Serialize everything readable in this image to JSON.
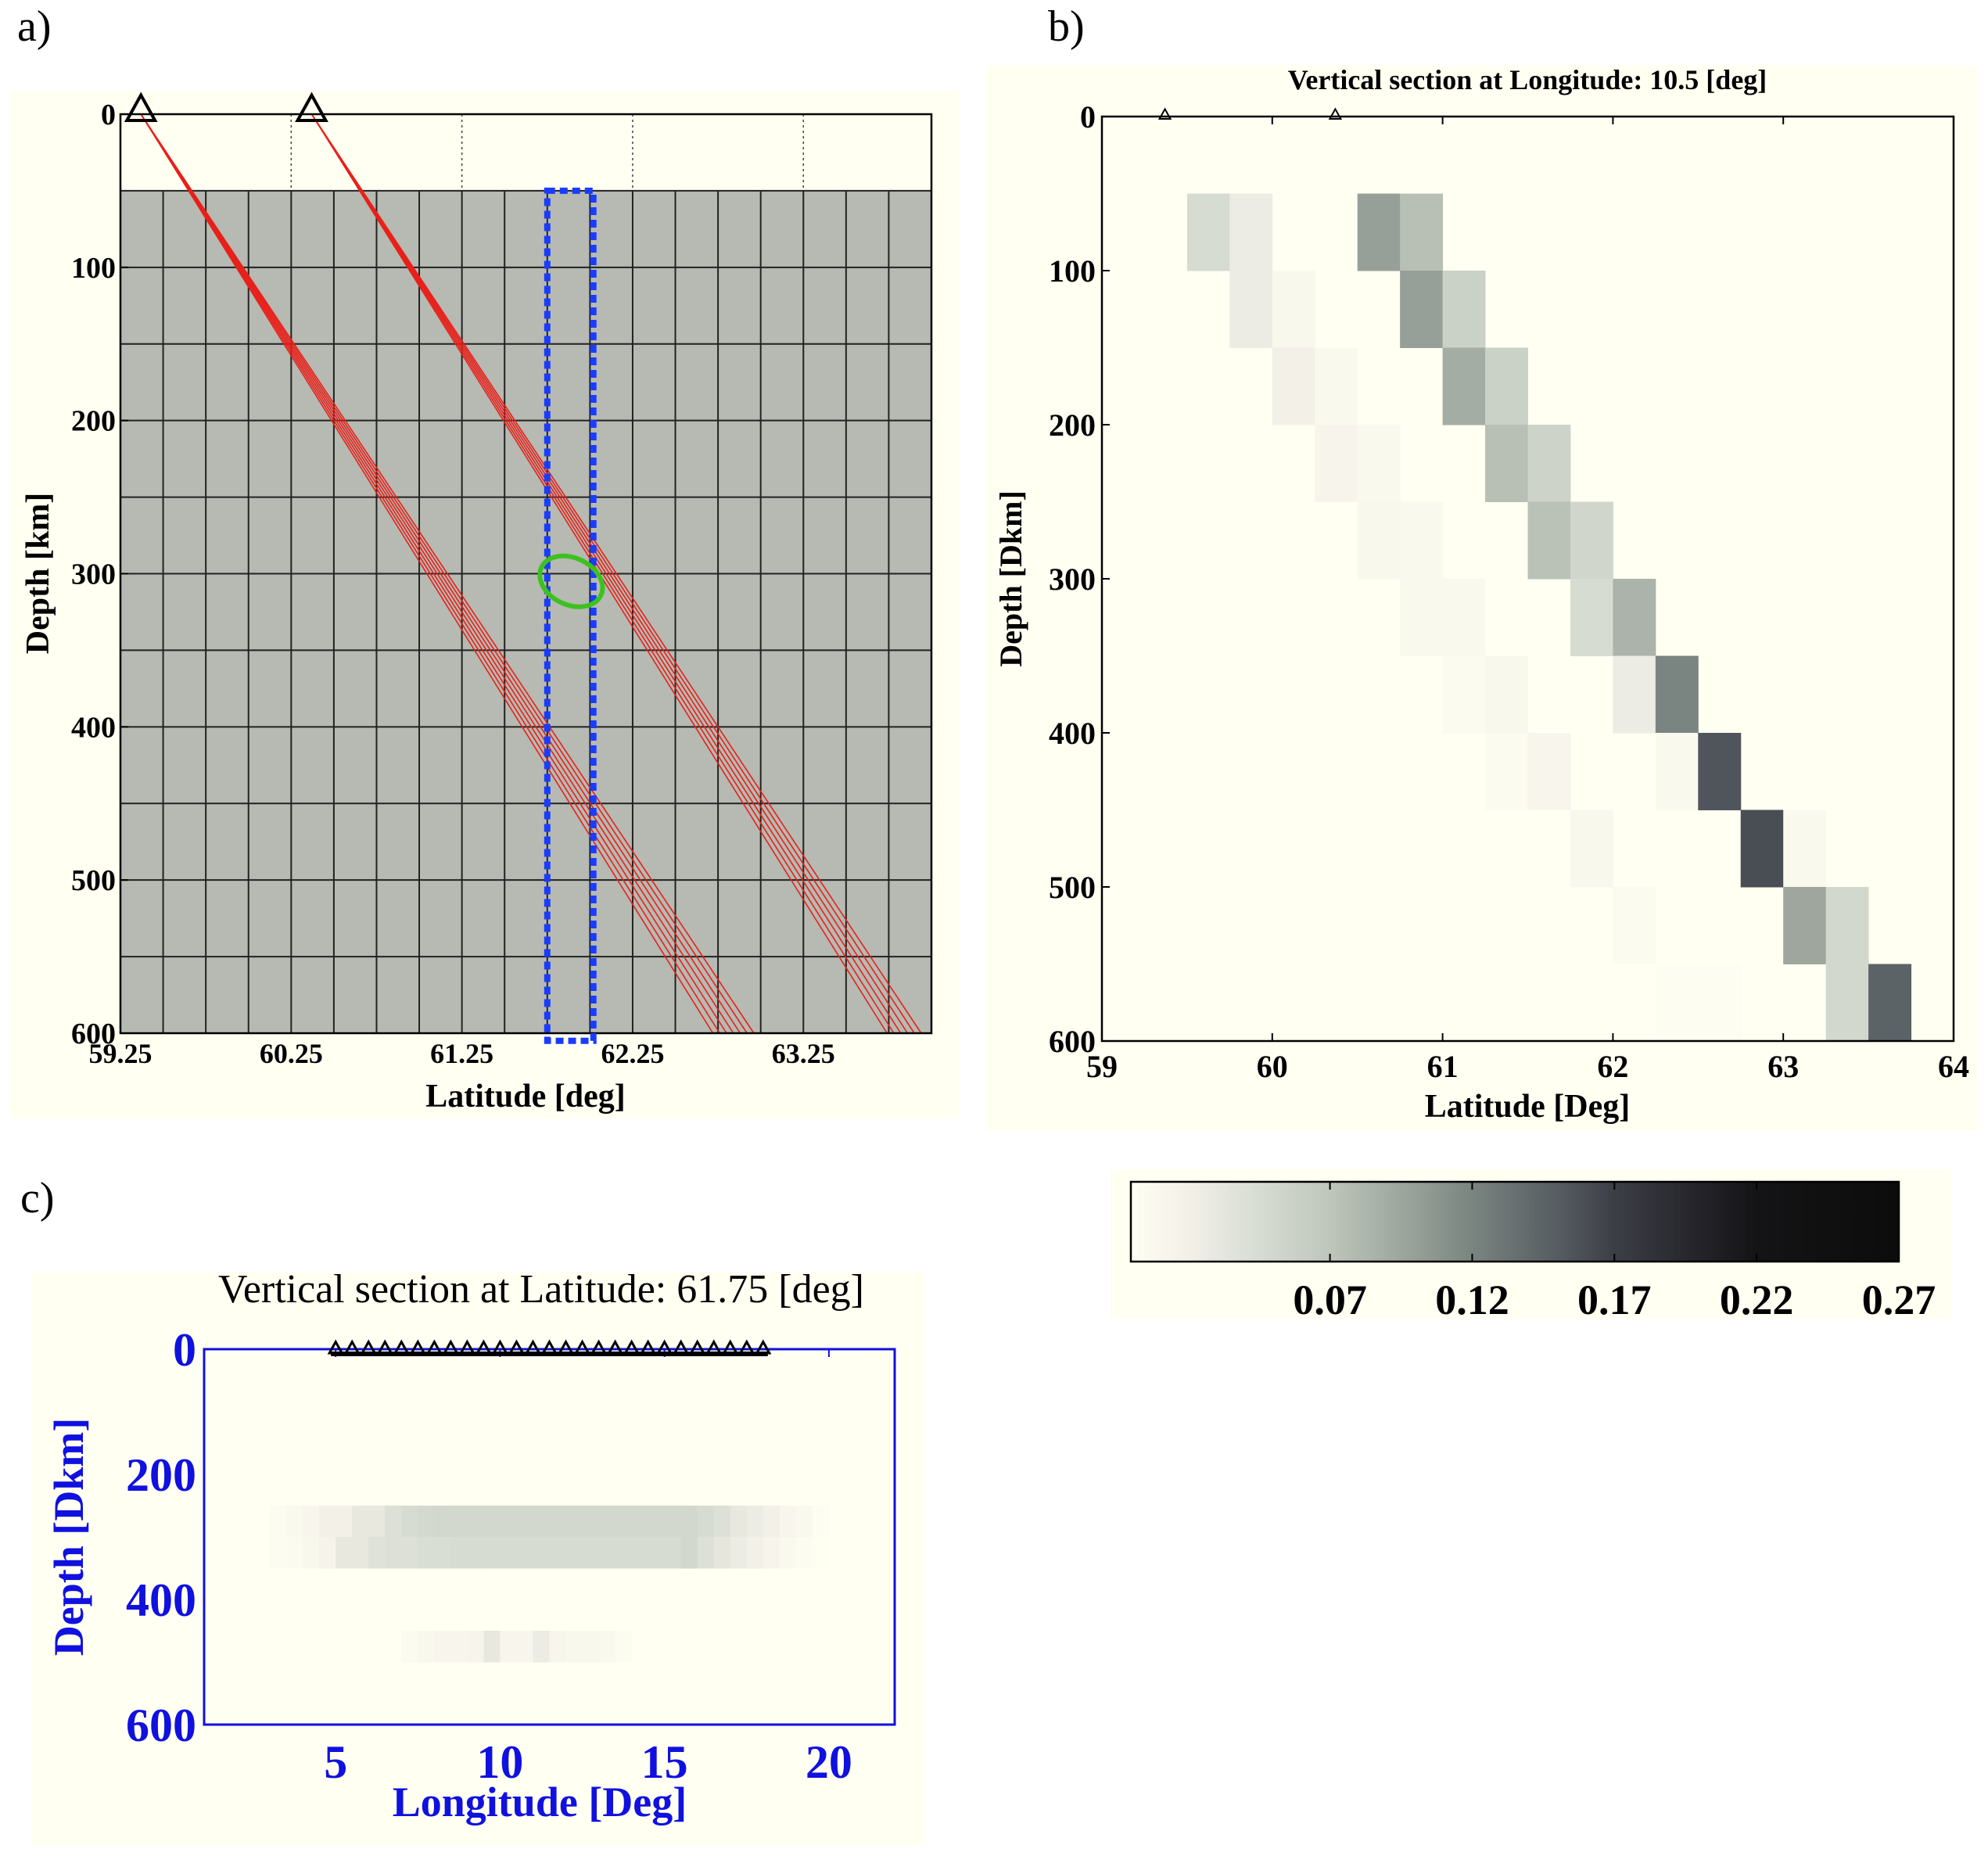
{
  "panels": {
    "a": "a)",
    "b": "b)",
    "c": "c)"
  },
  "chart_data": [
    {
      "id": "a",
      "type": "line",
      "title": "",
      "xlabel": "Latitude [deg]",
      "ylabel": "Depth [km]",
      "xlim": [
        59.25,
        64
      ],
      "ylim": [
        0,
        600
      ],
      "xticks": [
        "59.25",
        "60.25",
        "61.25",
        "62.25",
        "63.25"
      ],
      "yticks": [
        "0",
        "100",
        "200",
        "300",
        "400",
        "500",
        "600"
      ],
      "grid": {
        "lat_step": 0.25,
        "depth_step": 50,
        "shaded_from_depth": 50,
        "fill": "#b6bab2"
      },
      "stations_lat": [
        59.37,
        60.37
      ],
      "ray_color": "#e8201a",
      "rays": [
        {
          "start_lat": 59.37,
          "end_depth": 600,
          "end_lats": [
            62.72,
            62.76,
            62.8,
            62.84,
            62.88,
            62.92,
            62.96
          ]
        },
        {
          "start_lat": 60.37,
          "end_depth": 600,
          "end_lats": [
            63.74,
            63.78,
            63.82,
            63.86,
            63.9,
            63.94
          ]
        }
      ],
      "selection_box": {
        "lat": [
          61.75,
          62.02
        ],
        "depth": [
          50,
          605
        ],
        "color": "#1a3cff"
      },
      "highlight_ellipse": {
        "center_lat": 61.89,
        "center_depth": 305,
        "color": "#3cc21e"
      }
    },
    {
      "id": "b",
      "type": "heatmap",
      "title": "Vertical section at Longitude: 10.5 [deg]",
      "xlabel": "Latitude [Deg]",
      "ylabel": "Depth [Dkm]",
      "xlim": [
        59,
        64
      ],
      "ylim": [
        0,
        600
      ],
      "xticks": [
        "59",
        "60",
        "61",
        "62",
        "63",
        "64"
      ],
      "yticks": [
        "0",
        "100",
        "200",
        "300",
        "400",
        "500",
        "600"
      ],
      "cell_size": {
        "lat": 0.25,
        "depth": 50
      },
      "stations_lat": [
        59.37,
        60.37
      ],
      "cells": [
        [
          59.5,
          50,
          0.045
        ],
        [
          59.75,
          50,
          0.025
        ],
        [
          60.5,
          50,
          0.1
        ],
        [
          60.75,
          50,
          0.075
        ],
        [
          59.75,
          100,
          0.025
        ],
        [
          60.0,
          100,
          0.01
        ],
        [
          60.75,
          100,
          0.1
        ],
        [
          61.0,
          100,
          0.058
        ],
        [
          60.0,
          150,
          0.02
        ],
        [
          60.25,
          150,
          0.008
        ],
        [
          61.0,
          150,
          0.09
        ],
        [
          61.25,
          150,
          0.058
        ],
        [
          60.25,
          200,
          0.014
        ],
        [
          60.5,
          200,
          0.008
        ],
        [
          61.25,
          200,
          0.075
        ],
        [
          61.5,
          200,
          0.055
        ],
        [
          60.5,
          250,
          0.01
        ],
        [
          60.75,
          250,
          0.008
        ],
        [
          61.5,
          250,
          0.073
        ],
        [
          61.75,
          250,
          0.052
        ],
        [
          60.75,
          300,
          0.008
        ],
        [
          61.0,
          300,
          0.008
        ],
        [
          61.75,
          300,
          0.045
        ],
        [
          62.0,
          300,
          0.085
        ],
        [
          61.0,
          350,
          0.006
        ],
        [
          61.25,
          350,
          0.01
        ],
        [
          62.0,
          350,
          0.025
        ],
        [
          62.25,
          350,
          0.12
        ],
        [
          61.25,
          400,
          0.006
        ],
        [
          61.5,
          400,
          0.012
        ],
        [
          62.25,
          400,
          0.008
        ],
        [
          62.5,
          400,
          0.155
        ],
        [
          61.75,
          450,
          0.01
        ],
        [
          62.75,
          450,
          0.16
        ],
        [
          63.0,
          450,
          0.008
        ],
        [
          62.0,
          500,
          0.006
        ],
        [
          63.0,
          500,
          0.095
        ],
        [
          63.25,
          500,
          0.05
        ],
        [
          62.25,
          550,
          0.003
        ],
        [
          62.5,
          550,
          0.003
        ],
        [
          63.25,
          550,
          0.05
        ],
        [
          63.5,
          550,
          0.145
        ]
      ]
    },
    {
      "id": "colorbar",
      "type": "colorbar",
      "range": [
        0,
        0.27
      ],
      "ticks": [
        "0.07",
        "0.12",
        "0.17",
        "0.22",
        "0.27"
      ],
      "tick_values": [
        0.07,
        0.12,
        0.17,
        0.22,
        0.27
      ],
      "colormap": [
        [
          0.0,
          "#fffff2"
        ],
        [
          0.02,
          "#f3f0e8"
        ],
        [
          0.045,
          "#d7dcd2"
        ],
        [
          0.07,
          "#bec6bb"
        ],
        [
          0.1,
          "#97a098"
        ],
        [
          0.12,
          "#7a8480"
        ],
        [
          0.15,
          "#565c62"
        ],
        [
          0.17,
          "#3c3e46"
        ],
        [
          0.2,
          "#24232a"
        ],
        [
          0.22,
          "#141416"
        ],
        [
          0.27,
          "#0c0c0c"
        ]
      ]
    },
    {
      "id": "c",
      "type": "heatmap",
      "title": "Vertical section at Latitude: 61.75 [deg]",
      "xlabel": "Longitude [Deg]",
      "ylabel": "Depth [Dkm]",
      "xlim": [
        1,
        22
      ],
      "ylim": [
        0,
        600
      ],
      "xticks": [
        "5",
        "10",
        "15",
        "20"
      ],
      "yticks": [
        "0",
        "200",
        "400",
        "600"
      ],
      "axis_color": "#1010e0",
      "stations_lon_range": [
        5,
        18
      ],
      "station_count": 27,
      "cell_lon_width": 0.5,
      "rows": [
        {
          "depth": [
            250,
            300
          ],
          "start_lon": 3.0,
          "values": [
            0.004,
            0.008,
            0.012,
            0.02,
            0.02,
            0.03,
            0.03,
            0.04,
            0.045,
            0.048,
            0.05,
            0.05,
            0.05,
            0.05,
            0.05,
            0.05,
            0.05,
            0.05,
            0.05,
            0.05,
            0.05,
            0.05,
            0.05,
            0.05,
            0.05,
            0.05,
            0.045,
            0.04,
            0.03,
            0.025,
            0.02,
            0.012,
            0.008,
            0.003
          ]
        },
        {
          "depth": [
            300,
            350
          ],
          "start_lon": 3.0,
          "values": [
            0.004,
            0.006,
            0.01,
            0.016,
            0.03,
            0.03,
            0.038,
            0.04,
            0.04,
            0.043,
            0.043,
            0.045,
            0.045,
            0.045,
            0.045,
            0.045,
            0.045,
            0.045,
            0.045,
            0.045,
            0.045,
            0.045,
            0.045,
            0.045,
            0.045,
            0.05,
            0.04,
            0.032,
            0.025,
            0.02,
            0.014,
            0.008,
            0.004,
            0.002
          ]
        },
        {
          "depth": [
            450,
            500
          ],
          "start_lon": 7.0,
          "values": [
            0.006,
            0.01,
            0.012,
            0.012,
            0.014,
            0.03,
            0.012,
            0.012,
            0.025,
            0.012,
            0.01,
            0.01,
            0.008,
            0.004
          ]
        }
      ]
    }
  ]
}
